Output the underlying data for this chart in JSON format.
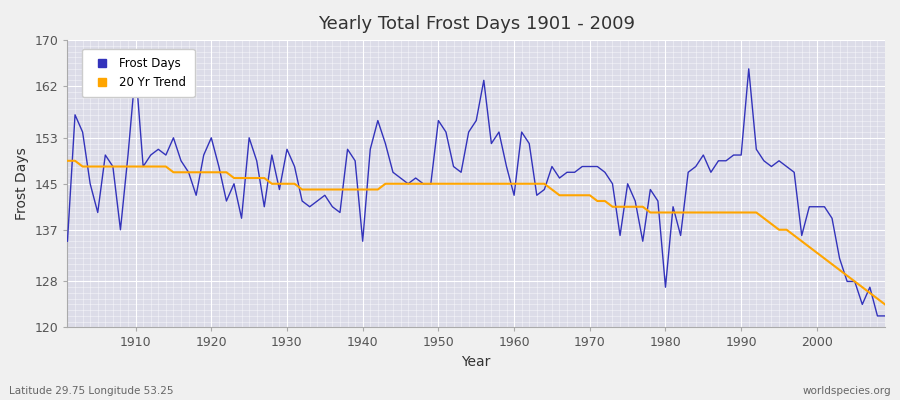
{
  "title": "Yearly Total Frost Days 1901 - 2009",
  "xlabel": "Year",
  "ylabel": "Frost Days",
  "footnote_left": "Latitude 29.75 Longitude 53.25",
  "footnote_right": "worldspecies.org",
  "legend_labels": [
    "Frost Days",
    "20 Yr Trend"
  ],
  "line_color": "#3333bb",
  "trend_color": "#ffa500",
  "bg_color": "#dcdce8",
  "fig_bg_color": "#f0f0f0",
  "ylim": [
    120,
    170
  ],
  "yticks": [
    120,
    128,
    137,
    145,
    153,
    162,
    170
  ],
  "years": [
    1901,
    1902,
    1903,
    1904,
    1905,
    1906,
    1907,
    1908,
    1909,
    1910,
    1911,
    1912,
    1913,
    1914,
    1915,
    1916,
    1917,
    1918,
    1919,
    1920,
    1921,
    1922,
    1923,
    1924,
    1925,
    1926,
    1927,
    1928,
    1929,
    1930,
    1931,
    1932,
    1933,
    1934,
    1935,
    1936,
    1937,
    1938,
    1939,
    1940,
    1941,
    1942,
    1943,
    1944,
    1945,
    1946,
    1947,
    1948,
    1949,
    1950,
    1951,
    1952,
    1953,
    1954,
    1955,
    1956,
    1957,
    1958,
    1959,
    1960,
    1961,
    1962,
    1963,
    1964,
    1965,
    1966,
    1967,
    1968,
    1969,
    1970,
    1971,
    1972,
    1973,
    1974,
    1975,
    1976,
    1977,
    1978,
    1979,
    1980,
    1981,
    1982,
    1983,
    1984,
    1985,
    1986,
    1987,
    1988,
    1989,
    1990,
    1991,
    1992,
    1993,
    1994,
    1995,
    1996,
    1997,
    1998,
    1999,
    2000,
    2001,
    2002,
    2003,
    2004,
    2005,
    2006,
    2007,
    2008,
    2009
  ],
  "frost_days": [
    135,
    157,
    154,
    145,
    140,
    150,
    148,
    137,
    150,
    165,
    148,
    150,
    151,
    150,
    153,
    149,
    147,
    143,
    150,
    153,
    148,
    142,
    145,
    139,
    153,
    149,
    141,
    150,
    144,
    151,
    148,
    142,
    141,
    142,
    143,
    141,
    140,
    151,
    149,
    135,
    151,
    156,
    152,
    147,
    146,
    145,
    146,
    145,
    145,
    156,
    154,
    148,
    147,
    154,
    156,
    163,
    152,
    154,
    148,
    143,
    154,
    152,
    143,
    144,
    148,
    146,
    147,
    147,
    148,
    148,
    148,
    147,
    145,
    136,
    145,
    142,
    135,
    144,
    142,
    127,
    141,
    136,
    147,
    148,
    150,
    147,
    149,
    149,
    150,
    150,
    165,
    151,
    149,
    148,
    149,
    148,
    147,
    136,
    141,
    141,
    141,
    139,
    132,
    128,
    128,
    124,
    127,
    122,
    122
  ],
  "trend_values": [
    149,
    149,
    148,
    148,
    148,
    148,
    148,
    148,
    148,
    148,
    148,
    148,
    148,
    148,
    147,
    147,
    147,
    147,
    147,
    147,
    147,
    147,
    146,
    146,
    146,
    146,
    146,
    145,
    145,
    145,
    145,
    144,
    144,
    144,
    144,
    144,
    144,
    144,
    144,
    144,
    144,
    144,
    145,
    145,
    145,
    145,
    145,
    145,
    145,
    145,
    145,
    145,
    145,
    145,
    145,
    145,
    145,
    145,
    145,
    145,
    145,
    145,
    145,
    145,
    144,
    143,
    143,
    143,
    143,
    143,
    142,
    142,
    141,
    141,
    141,
    141,
    141,
    140,
    140,
    140,
    140,
    140,
    140,
    140,
    140,
    140,
    140,
    140,
    140,
    140,
    140,
    140,
    139,
    138,
    137,
    137,
    136,
    135,
    134,
    133,
    132,
    131,
    130,
    129,
    128,
    127,
    126,
    125,
    124
  ]
}
